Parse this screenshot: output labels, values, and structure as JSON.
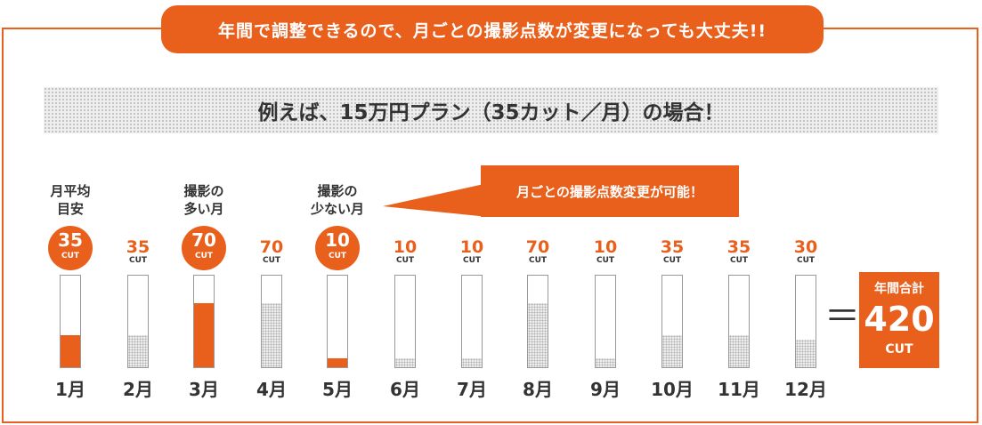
{
  "banner": "年間で調整できるので、月ごとの撮影点数が変更になっても大丈夫!!",
  "subtitle": "例えば、15万円プラン（35カット／月）の場合！",
  "callout": "月ごとの撮影点数変更が可能！",
  "equals": "＝",
  "total": {
    "label": "年間合計",
    "value": "420",
    "unit": "CUT"
  },
  "colors": {
    "accent": "#e8601c",
    "text": "#333333",
    "dot_fill": "#b0b0b0"
  },
  "chart_data": {
    "type": "bar",
    "unit": "CUT",
    "scale_max": 100,
    "categories": [
      "1月",
      "2月",
      "3月",
      "4月",
      "5月",
      "6月",
      "7月",
      "8月",
      "9月",
      "10月",
      "11月",
      "12月"
    ],
    "values": [
      35,
      35,
      70,
      70,
      10,
      10,
      10,
      70,
      10,
      35,
      35,
      30
    ],
    "highlighted": [
      true,
      false,
      true,
      false,
      true,
      false,
      false,
      false,
      false,
      false,
      false,
      false
    ],
    "annotations": [
      {
        "index": 0,
        "text": "月平均\n目安"
      },
      {
        "index": 2,
        "text": "撮影の\n多い月"
      },
      {
        "index": 4,
        "text": "撮影の\n少ない月"
      }
    ]
  }
}
